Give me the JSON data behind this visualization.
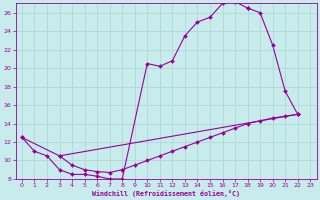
{
  "bg_color": "#c8ecec",
  "grid_color": "#b0d8d8",
  "line_color": "#990099",
  "xlim": [
    -0.5,
    23.5
  ],
  "ylim": [
    8,
    27
  ],
  "xticks": [
    0,
    1,
    2,
    3,
    4,
    5,
    6,
    7,
    8,
    9,
    10,
    11,
    12,
    13,
    14,
    15,
    16,
    17,
    18,
    19,
    20,
    21,
    22,
    23
  ],
  "yticks": [
    8,
    10,
    12,
    14,
    16,
    18,
    20,
    22,
    24,
    26
  ],
  "xlabel": "Windchill (Refroidissement éolien,°C)",
  "line1_x": [
    0,
    1,
    2,
    3,
    4,
    5,
    6,
    7,
    8,
    10,
    11,
    12,
    13,
    14,
    15,
    16,
    17,
    18
  ],
  "line1_y": [
    12.5,
    11.0,
    10.5,
    9.0,
    8.5,
    8.5,
    8.3,
    8.0,
    8.0,
    20.5,
    20.2,
    20.8,
    23.5,
    25.0,
    25.5,
    27.0,
    27.2,
    26.5
  ],
  "line2_x": [
    18,
    19,
    20,
    21,
    22
  ],
  "line2_y": [
    26.5,
    26.0,
    22.5,
    17.5,
    15.0
  ],
  "line3_x": [
    0,
    3,
    22
  ],
  "line3_y": [
    12.5,
    10.5,
    15.0
  ],
  "line4_x": [
    3,
    4,
    5,
    6,
    7,
    8,
    9,
    10,
    11,
    12,
    13,
    14,
    15,
    16,
    17,
    18,
    19,
    20,
    21,
    22
  ],
  "line4_y": [
    10.5,
    9.5,
    9.0,
    8.8,
    8.7,
    9.0,
    9.5,
    10.0,
    10.5,
    11.0,
    11.5,
    12.0,
    12.5,
    13.0,
    13.5,
    14.0,
    14.3,
    14.6,
    14.8,
    15.0
  ]
}
